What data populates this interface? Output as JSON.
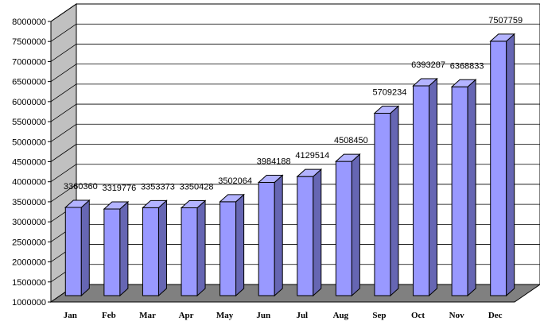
{
  "chart_data": {
    "type": "bar",
    "title": "",
    "xlabel": "",
    "ylabel": "",
    "categories": [
      "Jan",
      "Feb",
      "Mar",
      "Apr",
      "May",
      "Jun",
      "Jul",
      "Aug",
      "Sep",
      "Oct",
      "Nov",
      "Dec"
    ],
    "values": [
      3360360,
      3319776,
      3353373,
      3350428,
      3502064,
      3984188,
      4129514,
      4508450,
      5709234,
      6393287,
      6368833,
      7507759
    ],
    "data_labels": [
      "3360360",
      "3319776",
      "3353373",
      "3350428",
      "3502064",
      "3984188",
      "4129514",
      "4508450",
      "5709234",
      "6393287",
      "6368833",
      "7507759"
    ],
    "ylim": [
      1000000,
      8000000
    ],
    "yticks": [
      1000000,
      1500000,
      2000000,
      2500000,
      3000000,
      3500000,
      4000000,
      4500000,
      5000000,
      5500000,
      6000000,
      6500000,
      7000000,
      7500000,
      8000000
    ],
    "ytick_labels": [
      "1000000",
      "1500000",
      "2000000",
      "2500000",
      "3000000",
      "3500000",
      "4000000",
      "4500000",
      "5000000",
      "5500000",
      "6000000",
      "6500000",
      "7000000",
      "7500000",
      "8000000"
    ],
    "grid": true,
    "legend": "none",
    "colors": {
      "bar_front": "#9999ff",
      "bar_side": "#6666b3",
      "bar_top": "#b3b3ff",
      "side_wall": "#c0c0c0",
      "floor": "#808080",
      "gridline": "#000000",
      "background": "#ffffff"
    }
  }
}
